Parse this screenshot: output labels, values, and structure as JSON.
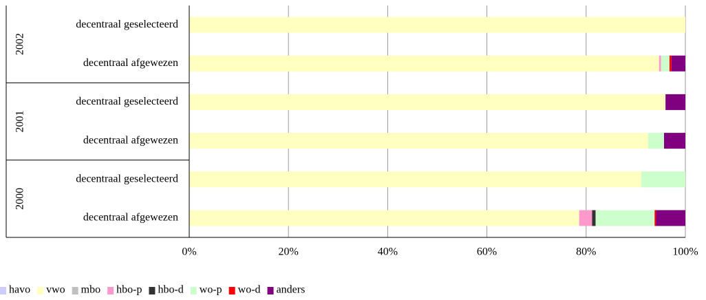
{
  "chart_data": {
    "type": "stacked-bar-horizontal",
    "groups": [
      {
        "name": "2002",
        "categories": [
          "decentraal geselecteerd",
          "decentraal afgewezen"
        ]
      },
      {
        "name": "2001",
        "categories": [
          "decentraal geselecteerd",
          "decentraal afgewezen"
        ]
      },
      {
        "name": "2000",
        "categories": [
          "decentraal geselecteerd",
          "decentraal afgewezen"
        ]
      }
    ],
    "series": [
      {
        "name": "havo",
        "color": "#ccccff",
        "values": [
          0,
          0,
          0,
          0,
          0,
          0
        ]
      },
      {
        "name": "vwo",
        "color": "#ffffc0",
        "values": [
          100,
          94.7,
          96.0,
          92.5,
          91.1,
          78.6
        ]
      },
      {
        "name": "mbo",
        "color": "#c0c0c0",
        "values": [
          0,
          0,
          0,
          0,
          0,
          0
        ]
      },
      {
        "name": "hbo-p",
        "color": "#ff99cc",
        "values": [
          0,
          0.4,
          0,
          0,
          0,
          2.6
        ]
      },
      {
        "name": "hbo-d",
        "color": "#333333",
        "values": [
          0,
          0,
          0,
          0,
          0,
          0.7
        ]
      },
      {
        "name": "wo-p",
        "color": "#ccffcc",
        "values": [
          0,
          1.7,
          0,
          3.2,
          8.9,
          11.9
        ]
      },
      {
        "name": "wo-d",
        "color": "#ff0000",
        "values": [
          0,
          0.4,
          0,
          0,
          0,
          0.3
        ]
      },
      {
        "name": "anders",
        "color": "#800080",
        "values": [
          0,
          2.8,
          4.0,
          4.3,
          0,
          5.9
        ]
      }
    ],
    "xlim": [
      0,
      100
    ],
    "xticks": [
      {
        "value": 0,
        "label": "0%"
      },
      {
        "value": 20,
        "label": "20%"
      },
      {
        "value": 40,
        "label": "40%"
      },
      {
        "value": 60,
        "label": "60%"
      },
      {
        "value": 80,
        "label": "80%"
      },
      {
        "value": 100,
        "label": "100%"
      }
    ],
    "grid": true,
    "legend": "bottom"
  }
}
